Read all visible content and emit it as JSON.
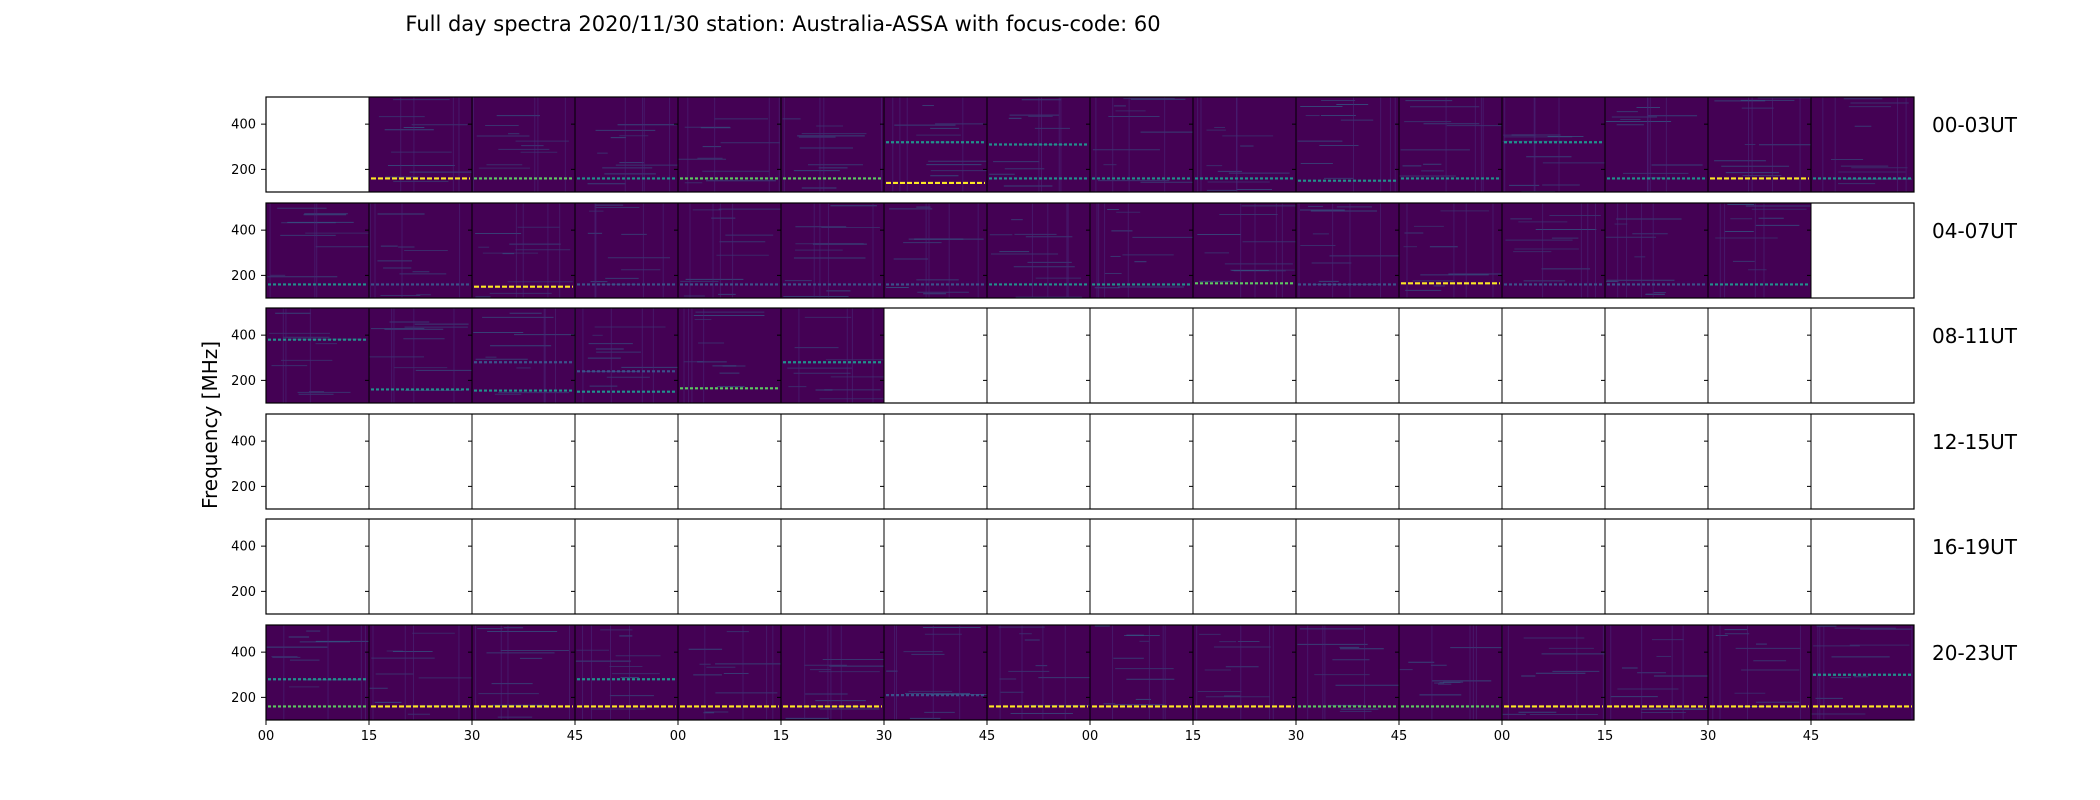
{
  "chart_data": {
    "type": "heatmap",
    "title": "Full day spectra 2020/11/30 station: Australia-ASSA with focus-code: 60",
    "ylabel": "Frequency [MHz]",
    "ytick_labels": [
      "400",
      "200"
    ],
    "yticks": [
      400,
      200
    ],
    "ylim": [
      100,
      520
    ],
    "xtick_labels": [
      "00",
      "15",
      "30",
      "45",
      "00",
      "15",
      "30",
      "45",
      "00",
      "15",
      "30",
      "45",
      "00",
      "15",
      "30",
      "45"
    ],
    "colormap": "viridis",
    "colors": {
      "background": "#440154",
      "band_low": "#3b528b",
      "band_mid": "#21918c",
      "band_high": "#5ec962",
      "band_max": "#fde725"
    },
    "rows": [
      {
        "label": "00-03UT",
        "panels": [
          false,
          true,
          true,
          true,
          true,
          true,
          true,
          true,
          true,
          true,
          true,
          true,
          true,
          true,
          true,
          true
        ]
      },
      {
        "label": "04-07UT",
        "panels": [
          true,
          true,
          true,
          true,
          true,
          true,
          true,
          true,
          true,
          true,
          true,
          true,
          true,
          true,
          true,
          false
        ]
      },
      {
        "label": "08-11UT",
        "panels": [
          true,
          true,
          true,
          true,
          true,
          true,
          false,
          false,
          false,
          false,
          false,
          false,
          false,
          false,
          false,
          false
        ]
      },
      {
        "label": "12-15UT",
        "panels": [
          false,
          false,
          false,
          false,
          false,
          false,
          false,
          false,
          false,
          false,
          false,
          false,
          false,
          false,
          false,
          false
        ]
      },
      {
        "label": "16-19UT",
        "panels": [
          false,
          false,
          false,
          false,
          false,
          false,
          false,
          false,
          false,
          false,
          false,
          false,
          false,
          false,
          false,
          false
        ]
      },
      {
        "label": "20-23UT",
        "panels": [
          true,
          true,
          true,
          true,
          true,
          true,
          true,
          true,
          true,
          true,
          true,
          true,
          true,
          true,
          true,
          true
        ]
      }
    ],
    "bands": [
      [
        [],
        [
          {
            "f": 160,
            "c": "band_max"
          }
        ],
        [
          {
            "f": 160,
            "c": "band_high"
          }
        ],
        [
          {
            "f": 160,
            "c": "band_mid"
          }
        ],
        [
          {
            "f": 160,
            "c": "band_high"
          }
        ],
        [
          {
            "f": 160,
            "c": "band_high"
          }
        ],
        [
          {
            "f": 320,
            "c": "band_mid"
          },
          {
            "f": 140,
            "c": "band_max"
          }
        ],
        [
          {
            "f": 310,
            "c": "band_mid"
          },
          {
            "f": 160,
            "c": "band_mid"
          }
        ],
        [
          {
            "f": 160,
            "c": "band_mid"
          }
        ],
        [
          {
            "f": 160,
            "c": "band_mid"
          }
        ],
        [
          {
            "f": 150,
            "c": "band_mid"
          }
        ],
        [
          {
            "f": 160,
            "c": "band_mid"
          }
        ],
        [
          {
            "f": 320,
            "c": "band_mid"
          }
        ],
        [
          {
            "f": 160,
            "c": "band_mid"
          }
        ],
        [
          {
            "f": 160,
            "c": "band_max"
          }
        ],
        [
          {
            "f": 160,
            "c": "band_mid"
          }
        ]
      ],
      [
        [
          {
            "f": 160,
            "c": "band_mid"
          }
        ],
        [
          {
            "f": 160,
            "c": "band_low"
          }
        ],
        [
          {
            "f": 150,
            "c": "band_max"
          }
        ],
        [
          {
            "f": 160,
            "c": "band_low"
          }
        ],
        [
          {
            "f": 160,
            "c": "band_low"
          }
        ],
        [
          {
            "f": 160,
            "c": "band_low"
          }
        ],
        [
          {
            "f": 160,
            "c": "band_low"
          }
        ],
        [
          {
            "f": 160,
            "c": "band_mid"
          }
        ],
        [
          {
            "f": 160,
            "c": "band_mid"
          }
        ],
        [
          {
            "f": 165,
            "c": "band_high"
          }
        ],
        [
          {
            "f": 160,
            "c": "band_low"
          }
        ],
        [
          {
            "f": 165,
            "c": "band_max"
          }
        ],
        [
          {
            "f": 160,
            "c": "band_low"
          }
        ],
        [
          {
            "f": 160,
            "c": "band_low"
          }
        ],
        [
          {
            "f": 160,
            "c": "band_mid"
          }
        ],
        []
      ],
      [
        [
          {
            "f": 380,
            "c": "band_mid"
          }
        ],
        [
          {
            "f": 160,
            "c": "band_mid"
          }
        ],
        [
          {
            "f": 155,
            "c": "band_mid"
          },
          {
            "f": 280,
            "c": "band_low"
          }
        ],
        [
          {
            "f": 150,
            "c": "band_mid"
          },
          {
            "f": 240,
            "c": "band_low"
          }
        ],
        [
          {
            "f": 165,
            "c": "band_high"
          }
        ],
        [
          {
            "f": 280,
            "c": "band_mid"
          }
        ],
        [],
        [],
        [],
        [],
        [],
        [],
        [],
        [],
        [],
        []
      ],
      [
        [],
        [],
        [],
        [],
        [],
        [],
        [],
        [],
        [],
        [],
        [],
        [],
        [],
        [],
        [],
        []
      ],
      [
        [],
        [],
        [],
        [],
        [],
        [],
        [],
        [],
        [],
        [],
        [],
        [],
        [],
        [],
        [],
        []
      ],
      [
        [
          {
            "f": 160,
            "c": "band_high"
          },
          {
            "f": 280,
            "c": "band_mid"
          }
        ],
        [
          {
            "f": 160,
            "c": "band_max"
          }
        ],
        [
          {
            "f": 160,
            "c": "band_max"
          }
        ],
        [
          {
            "f": 160,
            "c": "band_max"
          },
          {
            "f": 280,
            "c": "band_mid"
          }
        ],
        [
          {
            "f": 160,
            "c": "band_max"
          }
        ],
        [
          {
            "f": 160,
            "c": "band_max"
          }
        ],
        [
          {
            "f": 210,
            "c": "band_low"
          }
        ],
        [
          {
            "f": 160,
            "c": "band_max"
          }
        ],
        [
          {
            "f": 160,
            "c": "band_max"
          }
        ],
        [
          {
            "f": 160,
            "c": "band_max"
          }
        ],
        [
          {
            "f": 160,
            "c": "band_high"
          }
        ],
        [
          {
            "f": 160,
            "c": "band_high"
          }
        ],
        [
          {
            "f": 160,
            "c": "band_max"
          }
        ],
        [
          {
            "f": 160,
            "c": "band_max"
          }
        ],
        [
          {
            "f": 160,
            "c": "band_max"
          }
        ],
        [
          {
            "f": 160,
            "c": "band_max"
          },
          {
            "f": 300,
            "c": "band_mid"
          }
        ]
      ]
    ]
  }
}
